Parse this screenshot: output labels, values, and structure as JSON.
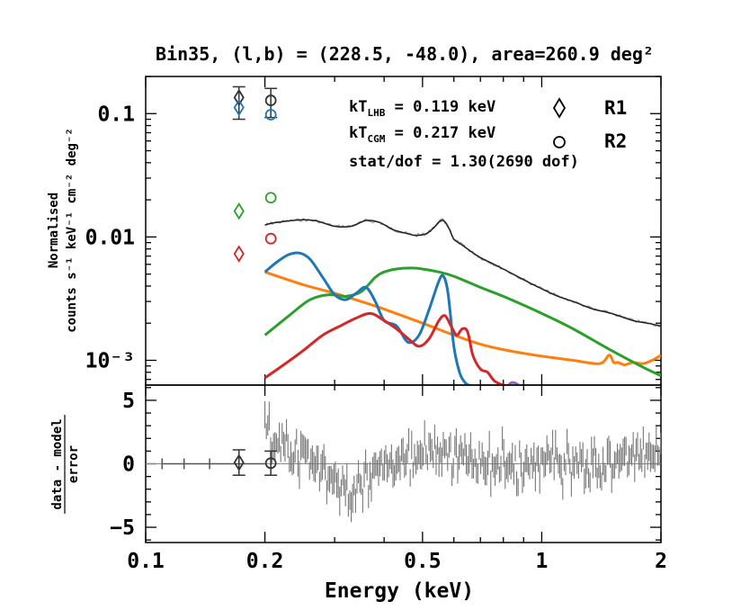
{
  "chart_data": {
    "type": "line",
    "title": "Bin35, (l,b) = (228.5, -48.0), area=260.9 deg²",
    "xlabel": "Energy (keV)",
    "x_scale": "log",
    "xlim": [
      0.1,
      2.0
    ],
    "x_ticks": [
      {
        "value": 0.1,
        "label": "0.1"
      },
      {
        "value": 0.2,
        "label": "0.2"
      },
      {
        "value": 0.5,
        "label": "0.5"
      },
      {
        "value": 1.0,
        "label": "1"
      },
      {
        "value": 2.0,
        "label": "2"
      }
    ],
    "top_panel": {
      "ylabel_lines": [
        "Normalised",
        "counts s⁻¹ keV⁻¹ cm⁻² deg⁻²"
      ],
      "y_scale": "log",
      "ylim": [
        0.00063,
        0.2
      ],
      "y_ticks": [
        {
          "value": 0.1,
          "label": "0.1"
        },
        {
          "value": 0.01,
          "label": "0.01"
        },
        {
          "value": 0.001,
          "label": "10⁻³"
        }
      ],
      "annotations": [
        "kT_LHB = 0.119 keV",
        "kT_CGM = 0.217 keV",
        "stat/dof = 1.30(2690 dof)"
      ],
      "legend": [
        {
          "marker": "diamond",
          "label": "R1"
        },
        {
          "marker": "circle",
          "label": "R2"
        }
      ],
      "series": [
        {
          "color": "#333333",
          "style": "data+model",
          "x": [
            0.2,
            0.21,
            0.23,
            0.25,
            0.27,
            0.3,
            0.33,
            0.36,
            0.39,
            0.42,
            0.45,
            0.48,
            0.51,
            0.53,
            0.55,
            0.56,
            0.57,
            0.585,
            0.6,
            0.63,
            0.66,
            0.7,
            0.75,
            0.8,
            0.9,
            1.0,
            1.1,
            1.2,
            1.35,
            1.5,
            1.7,
            1.85,
            2.0
          ],
          "y": [
            0.0125,
            0.013,
            0.0135,
            0.0138,
            0.0135,
            0.0122,
            0.0122,
            0.0136,
            0.0131,
            0.0115,
            0.0108,
            0.0103,
            0.0106,
            0.0116,
            0.0132,
            0.0137,
            0.0132,
            0.0115,
            0.0096,
            0.0086,
            0.0077,
            0.0068,
            0.0061,
            0.0055,
            0.0045,
            0.0038,
            0.0033,
            0.003,
            0.0026,
            0.0024,
            0.0021,
            0.002,
            0.0019
          ]
        },
        {
          "color": "#ff7f0e",
          "x": [
            0.2,
            0.25,
            0.3,
            0.35,
            0.4,
            0.5,
            0.6,
            0.7,
            0.8,
            0.9,
            1.0,
            1.2,
            1.4,
            1.48,
            1.52,
            1.56,
            1.62,
            1.7,
            1.8,
            1.9,
            2.0
          ],
          "y": [
            0.0052,
            0.0041,
            0.0035,
            0.003,
            0.0026,
            0.002,
            0.0016,
            0.00135,
            0.00122,
            0.00114,
            0.00108,
            0.001,
            0.00094,
            0.0011,
            0.00096,
            0.00096,
            0.00092,
            0.00096,
            0.00094,
            0.001,
            0.0011
          ]
        },
        {
          "color": "#2ca02c",
          "x": [
            0.2,
            0.23,
            0.26,
            0.29,
            0.32,
            0.35,
            0.38,
            0.4,
            0.43,
            0.47,
            0.5,
            0.55,
            0.6,
            0.7,
            0.8,
            1.0,
            1.2,
            1.5,
            1.8,
            2.0
          ],
          "y": [
            0.0016,
            0.0023,
            0.0031,
            0.0034,
            0.0033,
            0.0036,
            0.0047,
            0.0052,
            0.0055,
            0.0056,
            0.0055,
            0.0052,
            0.0048,
            0.0039,
            0.0033,
            0.0024,
            0.0018,
            0.0012,
            0.00088,
            0.00075
          ]
        },
        {
          "color": "#1f77b4",
          "x": [
            0.2,
            0.215,
            0.23,
            0.245,
            0.26,
            0.28,
            0.3,
            0.32,
            0.34,
            0.36,
            0.38,
            0.4,
            0.43,
            0.46,
            0.49,
            0.52,
            0.55,
            0.565,
            0.58,
            0.6,
            0.62,
            0.64,
            0.66
          ],
          "y": [
            0.0052,
            0.0063,
            0.0072,
            0.0074,
            0.0066,
            0.0047,
            0.0034,
            0.0031,
            0.0035,
            0.0039,
            0.003,
            0.0021,
            0.0019,
            0.0014,
            0.0016,
            0.0026,
            0.0044,
            0.0048,
            0.0035,
            0.0013,
            0.0008,
            0.00066,
            0.00062
          ]
        },
        {
          "color": "#d62728",
          "x": [
            0.2,
            0.22,
            0.25,
            0.28,
            0.31,
            0.34,
            0.37,
            0.4,
            0.43,
            0.46,
            0.49,
            0.52,
            0.55,
            0.57,
            0.59,
            0.61,
            0.63,
            0.65,
            0.67,
            0.7,
            0.73,
            0.76,
            0.8,
            0.84
          ],
          "y": [
            0.00072,
            0.00089,
            0.0012,
            0.0016,
            0.0019,
            0.0022,
            0.0024,
            0.0021,
            0.0018,
            0.0015,
            0.0013,
            0.0015,
            0.0021,
            0.0023,
            0.0019,
            0.0016,
            0.0018,
            0.0017,
            0.0011,
            0.00085,
            0.0008,
            0.00068,
            0.00063,
            0.00062
          ]
        },
        {
          "color": "#9467bd",
          "x": [
            0.82,
            0.84,
            0.86,
            0.88
          ],
          "y": [
            0.00062,
            0.00066,
            0.00065,
            0.00062
          ]
        }
      ],
      "markers": [
        {
          "x": 0.172,
          "y": 0.135,
          "shape": "diamond",
          "color": "#333333",
          "err": [
            0.09,
            0.165
          ]
        },
        {
          "x": 0.172,
          "y": 0.112,
          "shape": "diamond",
          "color": "#1f77b4"
        },
        {
          "x": 0.172,
          "y": 0.0162,
          "shape": "diamond",
          "color": "#2ca02c"
        },
        {
          "x": 0.172,
          "y": 0.0073,
          "shape": "diamond",
          "color": "#d62728"
        },
        {
          "x": 0.207,
          "y": 0.128,
          "shape": "circle",
          "color": "#333333",
          "err": [
            0.093,
            0.16
          ]
        },
        {
          "x": 0.207,
          "y": 0.098,
          "shape": "circle",
          "color": "#1f77b4"
        },
        {
          "x": 0.207,
          "y": 0.0208,
          "shape": "circle",
          "color": "#2ca02c"
        },
        {
          "x": 0.207,
          "y": 0.0097,
          "shape": "circle",
          "color": "#d62728"
        }
      ]
    },
    "bottom_panel": {
      "ylabel_numerator": "data - model",
      "ylabel_denominator": "error",
      "ylim": [
        -6.2,
        6.2
      ],
      "y_ticks": [
        {
          "value": 5,
          "label": "5"
        },
        {
          "value": 0,
          "label": "0"
        },
        {
          "value": -5,
          "label": "−5"
        }
      ],
      "residual_color": "#777777",
      "residual_envelope": {
        "x": [
          0.2,
          0.22,
          0.25,
          0.28,
          0.3,
          0.33,
          0.36,
          0.4,
          0.45,
          0.5,
          0.55,
          0.6,
          0.7,
          0.8,
          0.9,
          1.0,
          1.2,
          1.5,
          1.8,
          2.0
        ],
        "y": [
          2.0,
          1.5,
          0.8,
          0.0,
          -1.5,
          -2.0,
          -1.0,
          -0.5,
          0.5,
          1.0,
          1.0,
          0.5,
          0.3,
          0.0,
          -0.3,
          0.0,
          -0.2,
          0.3,
          0.5,
          0.8
        ]
      },
      "low_energy_points": [
        {
          "x": 0.11,
          "y": 0.0
        },
        {
          "x": 0.125,
          "y": 0.0
        },
        {
          "x": 0.145,
          "y": 0.0
        }
      ],
      "markers": [
        {
          "x": 0.172,
          "y": 0.1,
          "shape": "diamond",
          "err": [
            -0.9,
            1.1
          ]
        },
        {
          "x": 0.207,
          "y": 0.05,
          "shape": "circle",
          "err": [
            -0.9,
            1.0
          ]
        }
      ]
    }
  }
}
